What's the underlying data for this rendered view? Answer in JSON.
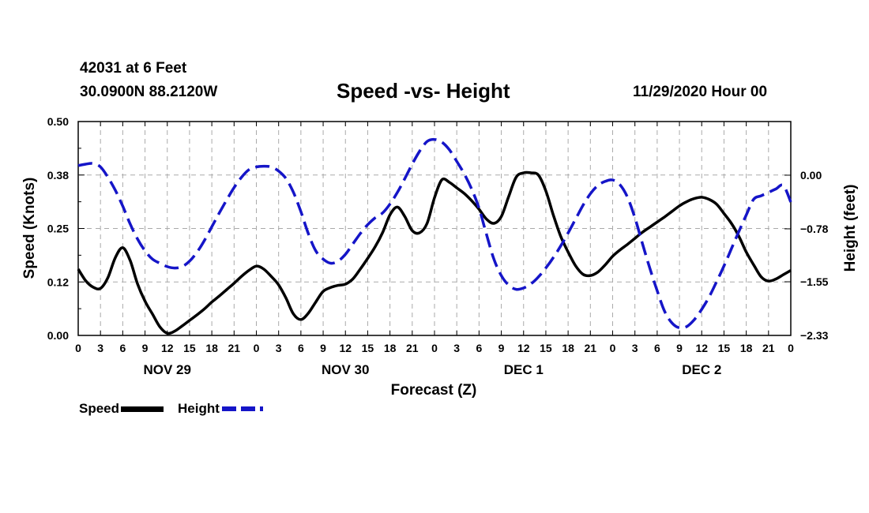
{
  "header": {
    "station": "42031 at 6 Feet",
    "coords": "30.0900N 88.2120W",
    "datestamp": "11/29/2020 Hour 00"
  },
  "legend": {
    "speed_label": "Speed",
    "height_label": "Height"
  },
  "colors": {
    "speed": "#000000",
    "height": "#1515c8",
    "grid": "#aaaaaa"
  },
  "chart_data": {
    "type": "line",
    "title": "Speed -vs- Height",
    "xlabel": "Forecast (Z)",
    "ylabel": "Speed (Knots)",
    "y2label": "Height (feet)",
    "x_range_hours": [
      0,
      96
    ],
    "x_tick_hours": [
      0,
      3,
      6,
      9,
      12,
      15,
      18,
      21,
      24,
      27,
      30,
      33,
      36,
      39,
      42,
      45,
      48,
      51,
      54,
      57,
      60,
      63,
      66,
      69,
      72,
      75,
      78,
      81,
      84,
      87,
      90,
      93,
      96
    ],
    "x_tick_labels": [
      "0",
      "3",
      "6",
      "9",
      "12",
      "15",
      "18",
      "21",
      "0",
      "3",
      "6",
      "9",
      "12",
      "15",
      "18",
      "21",
      "0",
      "3",
      "6",
      "9",
      "12",
      "15",
      "18",
      "21",
      "0",
      "3",
      "6",
      "9",
      "12",
      "15",
      "18",
      "21",
      "0"
    ],
    "day_labels": [
      {
        "label": "NOV 29",
        "hour": 12
      },
      {
        "label": "NOV 30",
        "hour": 36
      },
      {
        "label": "DEC 1",
        "hour": 60
      },
      {
        "label": "DEC 2",
        "hour": 84
      }
    ],
    "ylim": [
      0,
      0.5
    ],
    "y_ticks": [
      0,
      0.125,
      0.25,
      0.375,
      0.5
    ],
    "y_tick_labels": [
      "0.00",
      "0.12",
      "0.25",
      "0.38",
      "0.50"
    ],
    "y2lim": [
      -2.33,
      0.78
    ],
    "y2_ticks": [
      -2.33,
      -1.55,
      -0.78,
      0.0
    ],
    "y2_tick_labels": [
      "−2.33",
      "−1.55",
      "−0.78",
      "0.00"
    ],
    "series": [
      {
        "name": "Speed",
        "axis": "left",
        "style": "solid",
        "x": [
          0,
          1,
          2,
          3,
          4,
          5,
          6,
          7,
          8,
          9,
          10,
          11,
          12,
          13,
          14,
          15,
          16,
          17,
          18,
          19,
          20,
          21,
          22,
          23,
          24,
          25,
          26,
          27,
          28,
          29,
          30,
          31,
          32,
          33,
          34,
          35,
          36,
          37,
          38,
          39,
          40,
          41,
          42,
          43,
          44,
          45,
          46,
          47,
          48,
          49,
          50,
          51,
          52,
          53,
          54,
          55,
          56,
          57,
          58,
          59,
          60,
          61,
          62,
          63,
          64,
          65,
          66,
          67,
          68,
          69,
          70,
          71,
          72,
          73,
          74,
          75,
          76,
          77,
          78,
          79,
          80,
          81,
          82,
          83,
          84,
          85,
          86,
          87,
          88,
          89,
          90,
          91,
          92,
          93,
          94,
          95,
          96
        ],
        "values": [
          0.155,
          0.128,
          0.113,
          0.11,
          0.135,
          0.182,
          0.205,
          0.175,
          0.12,
          0.08,
          0.05,
          0.02,
          0.005,
          0.01,
          0.022,
          0.035,
          0.048,
          0.062,
          0.078,
          0.092,
          0.107,
          0.122,
          0.138,
          0.152,
          0.162,
          0.155,
          0.138,
          0.118,
          0.087,
          0.05,
          0.037,
          0.052,
          0.078,
          0.103,
          0.112,
          0.117,
          0.12,
          0.132,
          0.155,
          0.18,
          0.207,
          0.24,
          0.282,
          0.3,
          0.278,
          0.245,
          0.24,
          0.262,
          0.322,
          0.364,
          0.358,
          0.345,
          0.332,
          0.315,
          0.295,
          0.272,
          0.262,
          0.278,
          0.325,
          0.37,
          0.38,
          0.38,
          0.375,
          0.338,
          0.282,
          0.232,
          0.195,
          0.163,
          0.143,
          0.14,
          0.148,
          0.165,
          0.185,
          0.2,
          0.213,
          0.227,
          0.241,
          0.253,
          0.265,
          0.277,
          0.29,
          0.303,
          0.313,
          0.32,
          0.323,
          0.318,
          0.307,
          0.285,
          0.262,
          0.232,
          0.195,
          0.165,
          0.137,
          0.127,
          0.132,
          0.142,
          0.152
        ]
      },
      {
        "name": "Height",
        "axis": "right",
        "style": "dashed",
        "x": [
          0,
          1,
          2,
          3,
          4,
          5,
          6,
          7,
          8,
          9,
          10,
          11,
          12,
          13,
          14,
          15,
          16,
          17,
          18,
          19,
          20,
          21,
          22,
          23,
          24,
          25,
          26,
          27,
          28,
          29,
          30,
          31,
          32,
          33,
          34,
          35,
          36,
          37,
          38,
          39,
          40,
          41,
          42,
          43,
          44,
          45,
          46,
          47,
          48,
          49,
          50,
          51,
          52,
          53,
          54,
          55,
          56,
          57,
          58,
          59,
          60,
          61,
          62,
          63,
          64,
          65,
          66,
          67,
          68,
          69,
          70,
          71,
          72,
          73,
          74,
          75,
          76,
          77,
          78,
          79,
          80,
          81,
          82,
          83,
          84,
          85,
          86,
          87,
          88,
          89,
          90,
          91,
          92,
          93,
          94,
          95,
          96
        ],
        "values": [
          0.14,
          0.16,
          0.17,
          0.12,
          -0.03,
          -0.22,
          -0.45,
          -0.71,
          -0.93,
          -1.1,
          -1.22,
          -1.28,
          -1.33,
          -1.35,
          -1.33,
          -1.25,
          -1.12,
          -0.95,
          -0.75,
          -0.55,
          -0.36,
          -0.18,
          -0.03,
          0.08,
          0.12,
          0.13,
          0.12,
          0.06,
          -0.05,
          -0.25,
          -0.53,
          -0.85,
          -1.1,
          -1.22,
          -1.28,
          -1.25,
          -1.15,
          -1.0,
          -0.85,
          -0.72,
          -0.62,
          -0.55,
          -0.42,
          -0.25,
          -0.05,
          0.16,
          0.35,
          0.49,
          0.52,
          0.48,
          0.37,
          0.2,
          0.02,
          -0.2,
          -0.48,
          -0.86,
          -1.22,
          -1.46,
          -1.6,
          -1.66,
          -1.64,
          -1.58,
          -1.48,
          -1.35,
          -1.2,
          -1.03,
          -0.84,
          -0.64,
          -0.44,
          -0.27,
          -0.15,
          -0.09,
          -0.07,
          -0.14,
          -0.32,
          -0.62,
          -0.99,
          -1.35,
          -1.68,
          -1.98,
          -2.15,
          -2.22,
          -2.2,
          -2.1,
          -1.95,
          -1.77,
          -1.55,
          -1.32,
          -1.07,
          -0.82,
          -0.58,
          -0.35,
          -0.3,
          -0.25,
          -0.2,
          -0.15,
          -0.39
        ]
      }
    ]
  }
}
